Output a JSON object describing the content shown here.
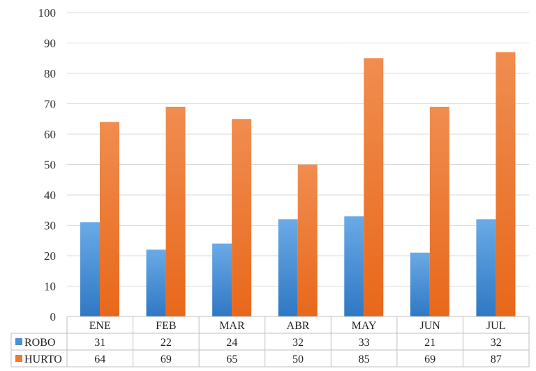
{
  "chart_data": {
    "type": "bar",
    "categories": [
      "ENE",
      "FEB",
      "MAR",
      "ABR",
      "MAY",
      "JUN",
      "JUL"
    ],
    "series": [
      {
        "name": "ROBO",
        "values": [
          31,
          22,
          24,
          32,
          33,
          21,
          32
        ],
        "color": "#4a90d9"
      },
      {
        "name": "HURTO",
        "values": [
          64,
          69,
          65,
          50,
          85,
          69,
          87
        ],
        "color": "#ef7b2c"
      }
    ],
    "ylim": [
      0,
      100
    ],
    "yticks": [
      0,
      10,
      20,
      30,
      40,
      50,
      60,
      70,
      80,
      90,
      100
    ],
    "grid": true,
    "legend": "data-table"
  }
}
